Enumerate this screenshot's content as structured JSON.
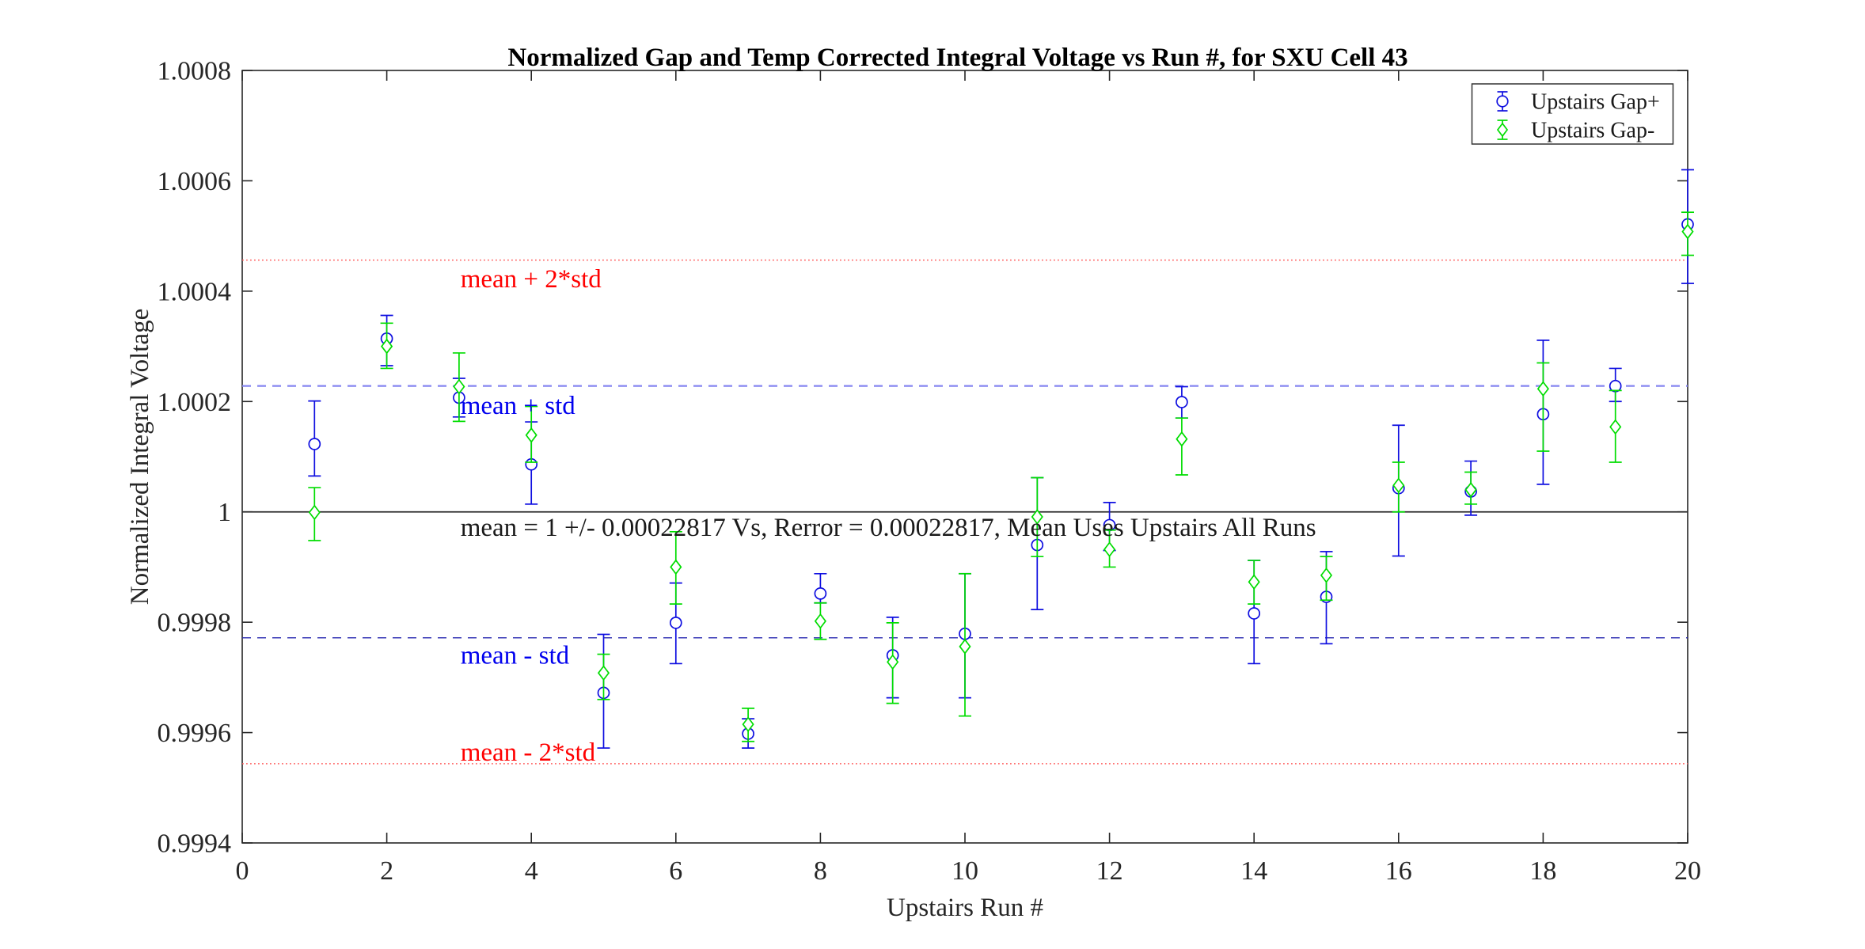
{
  "figure": {
    "title": "Normalized Gap and Temp Corrected Integral Voltage vs Run #, for SXU Cell 43",
    "xlabel": "Upstairs Run #",
    "ylabel": "Normalized Integral Voltage"
  },
  "chart_data": {
    "type": "scatter",
    "title": "Normalized Gap and Temp Corrected Integral Voltage vs Run #, for SXU Cell 43",
    "xlabel": "Upstairs Run #",
    "ylabel": "Normalized Integral Voltage",
    "xlim": [
      0,
      20
    ],
    "ylim": [
      0.9994,
      1.0008
    ],
    "xticks": [
      0,
      2,
      4,
      6,
      8,
      10,
      12,
      14,
      16,
      18,
      20
    ],
    "yticks": [
      0.9994,
      0.9996,
      0.9998,
      1,
      1.0002,
      1.0004,
      1.0006,
      1.0008
    ],
    "ytick_labels": [
      "0.9994",
      "0.9996",
      "0.9998",
      "1",
      "1.0002",
      "1.0004",
      "1.0006",
      "1.0008"
    ],
    "grid": false,
    "legend": {
      "position": "top-right",
      "entries": [
        {
          "label": "Upstairs Gap+",
          "marker": "circle",
          "color": "#0f0fe0"
        },
        {
          "label": "Upstairs Gap-",
          "marker": "diamond",
          "color": "#00dd00"
        }
      ]
    },
    "series": [
      {
        "name": "Upstairs Gap+",
        "marker": "circle",
        "color": "#0f0fe0",
        "x": [
          1,
          2,
          3,
          4,
          5,
          6,
          7,
          8,
          9,
          10,
          11,
          12,
          13,
          14,
          15,
          16,
          17,
          18,
          19,
          20
        ],
        "y": [
          1.000123,
          1.000314,
          1.000207,
          1.000086,
          0.999672,
          0.999799,
          0.999598,
          0.999852,
          0.99974,
          0.999779,
          0.99994,
          0.999976,
          1.000199,
          0.999816,
          0.999846,
          1.000043,
          1.000037,
          1.000177,
          1.000228,
          1.000521
        ],
        "err_hi": [
          1.000201,
          1.000356,
          1.000242,
          1.000163,
          0.999778,
          0.999871,
          0.999625,
          0.999888,
          0.999809,
          0.999888,
          1.000062,
          1.000017,
          1.000227,
          0.999912,
          0.999928,
          1.000157,
          1.000092,
          1.000311,
          1.00026,
          1.00062
        ],
        "err_lo": [
          1.000065,
          1.000265,
          1.000172,
          1.000014,
          0.999572,
          0.999725,
          0.999572,
          0.999835,
          0.999663,
          0.999663,
          0.999823,
          0.99993,
          1.00017,
          0.999725,
          0.999761,
          0.99992,
          0.999994,
          1.00005,
          1.0002,
          1.000414
        ]
      },
      {
        "name": "Upstairs Gap-",
        "marker": "diamond",
        "color": "#00dd00",
        "x": [
          1,
          2,
          3,
          4,
          5,
          6,
          7,
          8,
          9,
          10,
          11,
          12,
          13,
          14,
          15,
          16,
          17,
          18,
          19,
          20
        ],
        "y": [
          0.999999,
          1.0003,
          1.000227,
          1.000139,
          0.999708,
          0.9999,
          0.999615,
          0.999802,
          0.999728,
          0.999756,
          0.999991,
          0.999932,
          1.000132,
          0.999873,
          0.999885,
          1.000048,
          1.00004,
          1.000223,
          1.000154,
          1.000508
        ],
        "err_hi": [
          1.000044,
          1.000342,
          1.000288,
          1.000191,
          0.999742,
          0.999964,
          0.999644,
          0.999835,
          0.999799,
          0.999888,
          1.000062,
          0.999967,
          1.00017,
          0.999912,
          0.999919,
          1.00009,
          1.000072,
          1.00027,
          1.00022,
          1.000543
        ],
        "err_lo": [
          0.999948,
          1.00026,
          1.000164,
          1.00009,
          0.99966,
          0.999833,
          0.999584,
          0.999769,
          0.999653,
          0.99963,
          0.999919,
          0.9999,
          1.000067,
          0.999833,
          0.99984,
          1.0,
          1.000014,
          1.00011,
          1.00009,
          1.000465
        ]
      }
    ],
    "ref_lines": [
      {
        "label": "mean + 2*std",
        "y": 1.00045634,
        "color": "#ff5c5c",
        "style": "dotted",
        "width": 1.5
      },
      {
        "label": "mean + std",
        "y": 1.00022817,
        "color": "#8585f0",
        "style": "dashed",
        "width": 2.2
      },
      {
        "label": "mean",
        "y": 1.0,
        "color": "#2e2e2e",
        "style": "solid",
        "width": 1.7
      },
      {
        "label": "mean - std",
        "y": 0.99977183,
        "color": "#2a2ab0",
        "style": "dashed",
        "width": 1.4
      },
      {
        "label": "mean - 2*std",
        "y": 0.99954366,
        "color": "#ff5c5c",
        "style": "dotted",
        "width": 1.5
      }
    ],
    "annotations": [
      {
        "text": "mean + 2*std",
        "x": 3.02,
        "y": 1.000423,
        "color": "#ff0000"
      },
      {
        "text": "mean + std",
        "x": 3.02,
        "y": 1.000193,
        "color": "#0000ee"
      },
      {
        "text": "mean = 1 +/- 0.00022817 Vs, Rerror = 0.00022817, Mean Uses Upstairs All Runs",
        "x": 3.02,
        "y": 0.999972,
        "color": "#1a1a1a"
      },
      {
        "text": "mean - std",
        "x": 3.02,
        "y": 0.999741,
        "color": "#0000ee"
      },
      {
        "text": "mean - 2*std",
        "x": 3.02,
        "y": 0.999565,
        "color": "#ff0000"
      }
    ]
  }
}
